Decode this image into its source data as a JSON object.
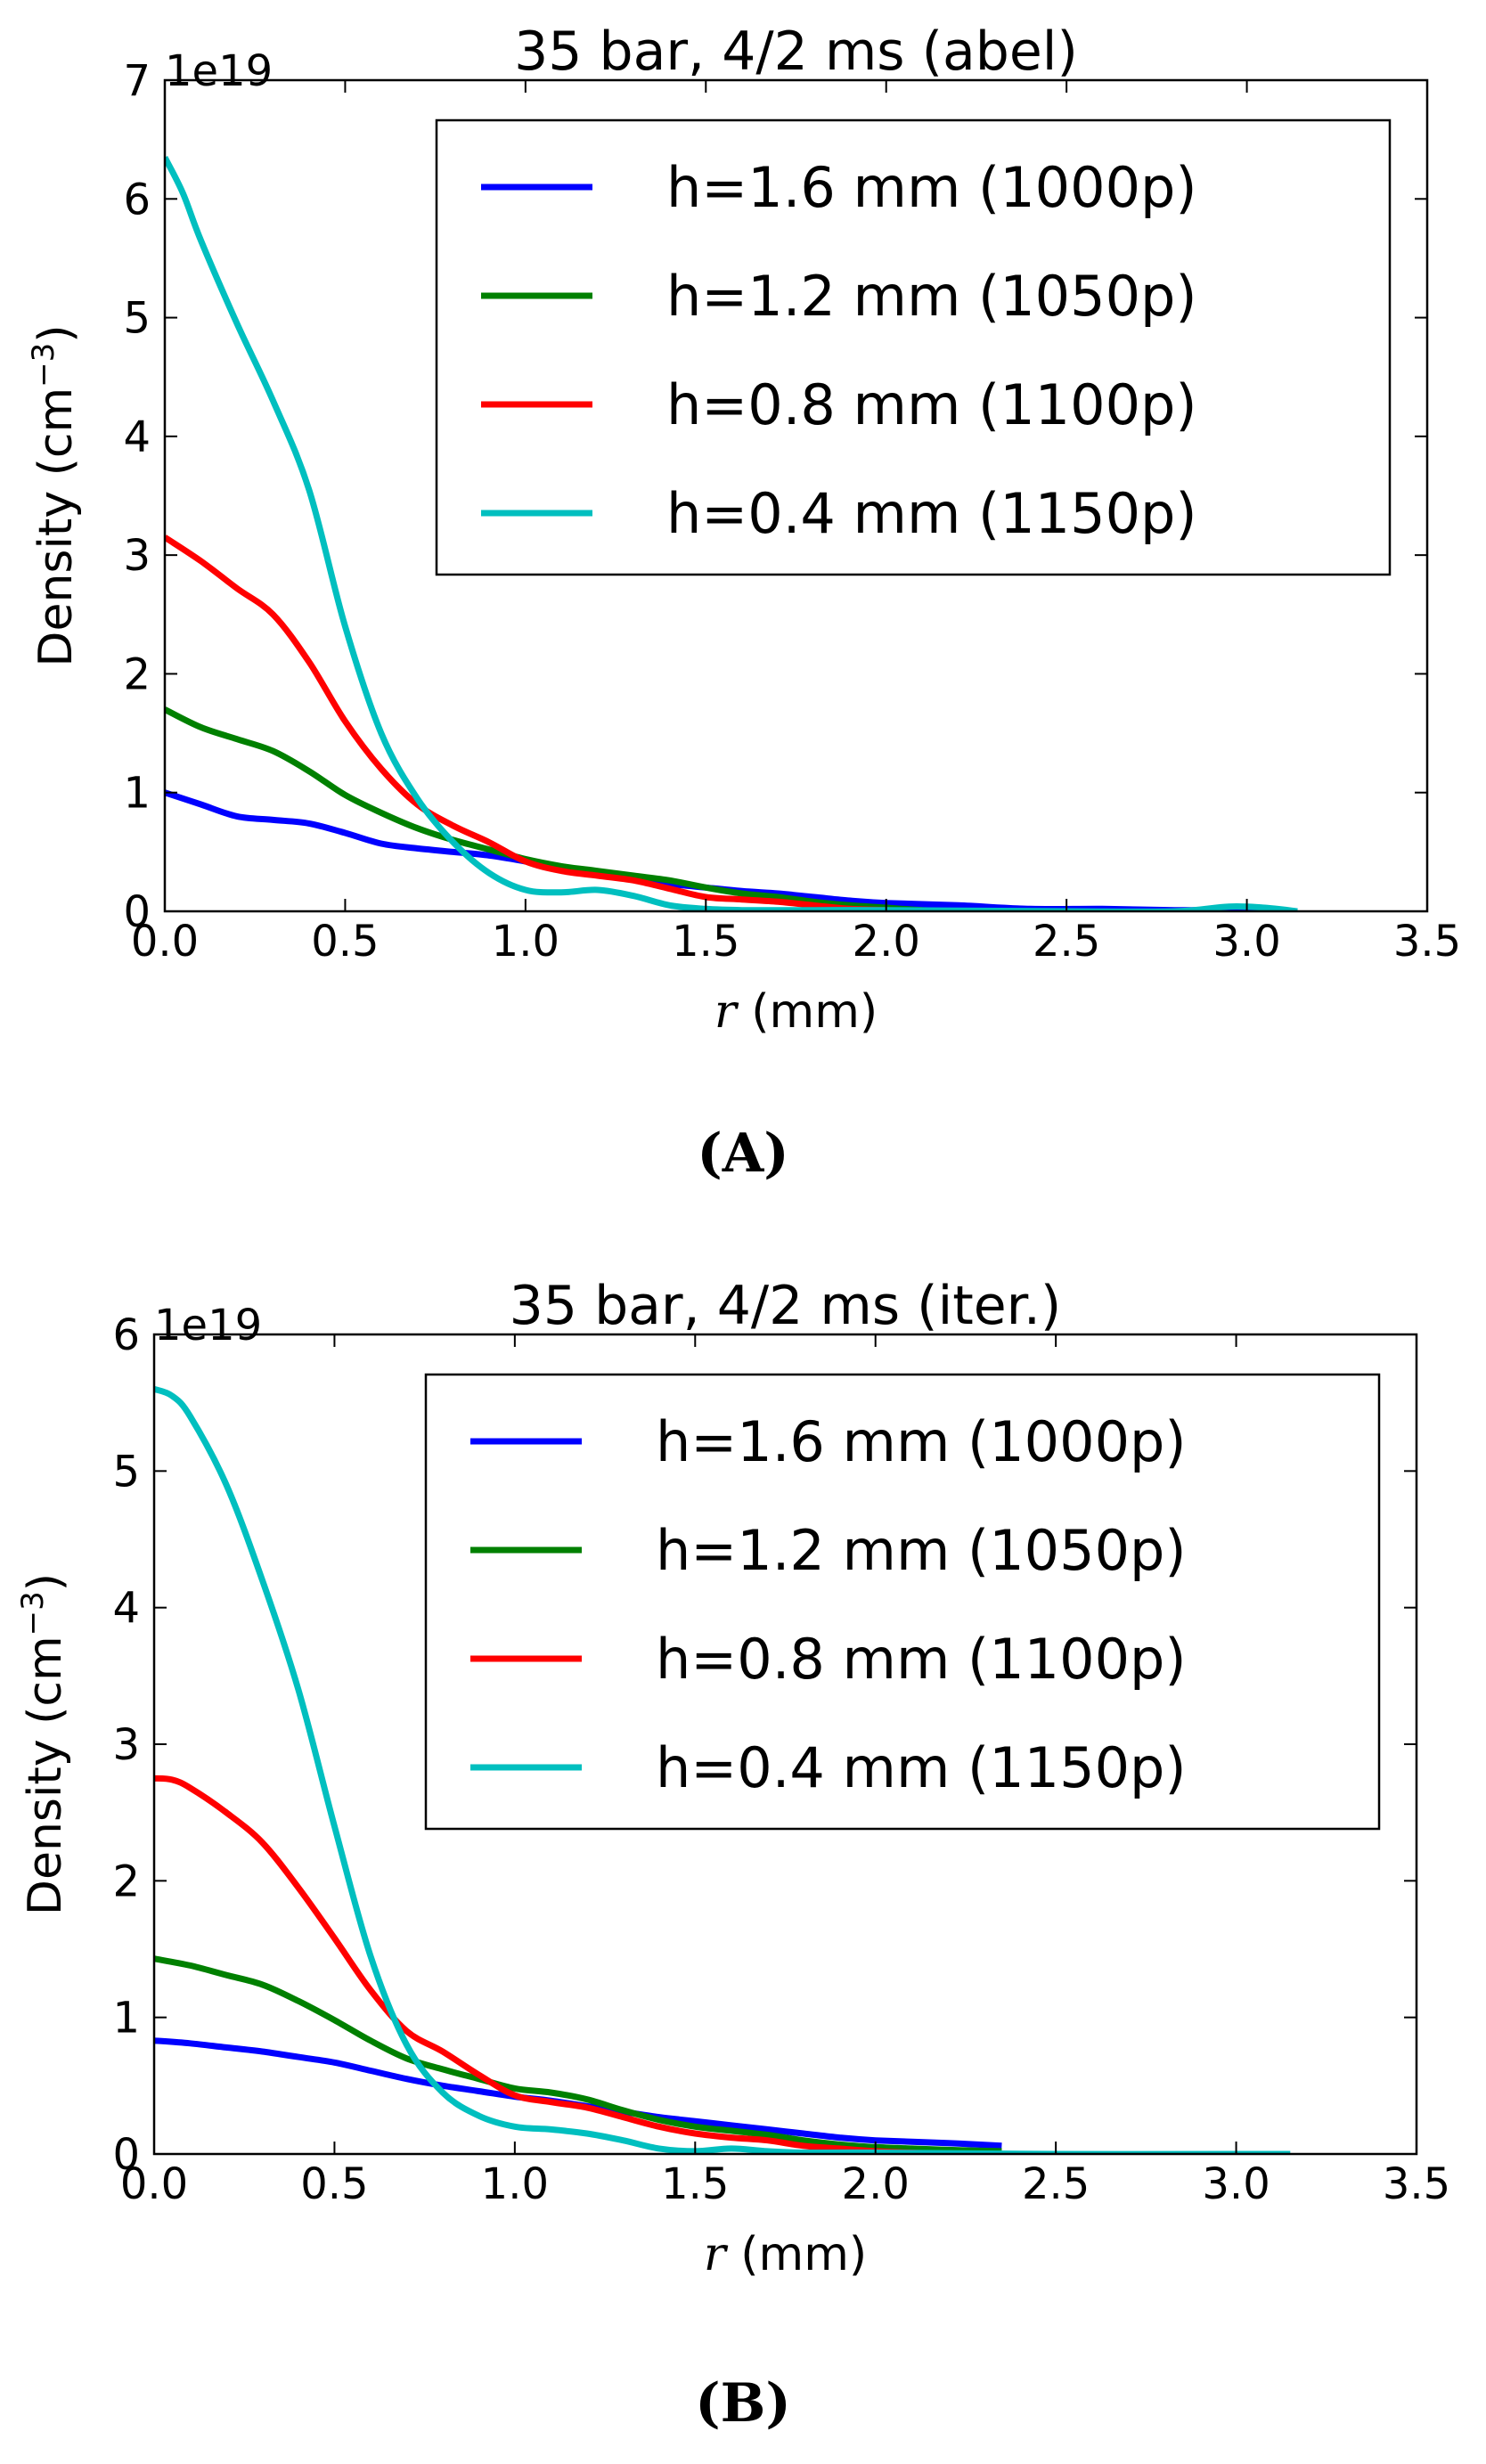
{
  "colors": {
    "blue": "#0000ff",
    "green": "#008000",
    "red": "#ff0000",
    "cyan": "#00bfbf",
    "axis": "#000000",
    "background": "#ffffff"
  },
  "chart_data": [
    {
      "type": "line",
      "panel_label": "(A)",
      "title": "35 bar, 4/2 ms (abel)",
      "xlabel_var": "r",
      "xlabel_unit": " (mm)",
      "ylabel": "Density (cm",
      "ylabel_exp": "−3",
      "ylabel_close": ")",
      "offset_text": "1e19",
      "xlim": [
        0,
        3.5
      ],
      "ylim": [
        0,
        7
      ],
      "xticks": [
        0.0,
        0.5,
        1.0,
        1.5,
        2.0,
        2.5,
        3.0,
        3.5
      ],
      "xtick_labels": [
        "0.0",
        "0.5",
        "1.0",
        "1.5",
        "2.0",
        "2.5",
        "3.0",
        "3.5"
      ],
      "yticks": [
        0,
        1,
        2,
        3,
        4,
        5,
        6,
        7
      ],
      "ytick_labels": [
        "0",
        "1",
        "2",
        "3",
        "4",
        "5",
        "6",
        "7"
      ],
      "legend_position": "upper-right",
      "series": [
        {
          "name": "h=1.6 mm (1000p)",
          "color_key": "blue",
          "x": [
            0,
            0.1,
            0.2,
            0.3,
            0.4,
            0.5,
            0.6,
            0.7,
            0.8,
            0.9,
            1.0,
            1.1,
            1.2,
            1.3,
            1.4,
            1.5,
            1.6,
            1.7,
            1.8,
            1.9,
            2.0,
            2.2,
            2.4,
            2.6,
            2.8,
            3.0,
            3.14
          ],
          "y": [
            1.0,
            0.9,
            0.8,
            0.77,
            0.74,
            0.66,
            0.57,
            0.53,
            0.5,
            0.47,
            0.42,
            0.36,
            0.31,
            0.27,
            0.23,
            0.2,
            0.17,
            0.15,
            0.12,
            0.09,
            0.07,
            0.05,
            0.02,
            0.02,
            0.01,
            0.01,
            0.0
          ]
        },
        {
          "name": "h=1.2 mm (1050p)",
          "color_key": "green",
          "x": [
            0,
            0.1,
            0.2,
            0.3,
            0.4,
            0.5,
            0.6,
            0.7,
            0.8,
            0.9,
            1.0,
            1.1,
            1.2,
            1.3,
            1.4,
            1.5,
            1.6,
            1.7,
            1.8,
            1.9,
            2.0,
            2.1,
            2.2
          ],
          "y": [
            1.7,
            1.55,
            1.45,
            1.35,
            1.18,
            0.98,
            0.83,
            0.7,
            0.6,
            0.52,
            0.44,
            0.38,
            0.34,
            0.3,
            0.26,
            0.2,
            0.15,
            0.12,
            0.08,
            0.05,
            0.03,
            0.01,
            0.0
          ]
        },
        {
          "name": "h=0.8 mm (1100p)",
          "color_key": "red",
          "x": [
            0,
            0.1,
            0.2,
            0.3,
            0.4,
            0.5,
            0.6,
            0.7,
            0.8,
            0.9,
            1.0,
            1.1,
            1.2,
            1.3,
            1.4,
            1.5,
            1.6,
            1.7,
            1.8,
            1.9,
            2.0,
            2.1
          ],
          "y": [
            3.15,
            2.95,
            2.72,
            2.5,
            2.1,
            1.6,
            1.2,
            0.9,
            0.72,
            0.58,
            0.42,
            0.34,
            0.3,
            0.26,
            0.19,
            0.12,
            0.1,
            0.08,
            0.05,
            0.02,
            0.01,
            0.0
          ]
        },
        {
          "name": "h=0.4 mm (1150p)",
          "color_key": "cyan",
          "x": [
            0,
            0.05,
            0.1,
            0.2,
            0.3,
            0.4,
            0.5,
            0.6,
            0.7,
            0.8,
            0.9,
            1.0,
            1.1,
            1.2,
            1.3,
            1.4,
            1.5,
            1.6,
            1.8,
            2.0,
            2.5,
            2.8,
            2.95,
            3.05,
            3.14
          ],
          "y": [
            6.35,
            6.05,
            5.65,
            4.95,
            4.3,
            3.55,
            2.4,
            1.5,
            0.95,
            0.58,
            0.32,
            0.18,
            0.16,
            0.18,
            0.13,
            0.05,
            0.02,
            0.01,
            0.01,
            0.01,
            0.0,
            0.0,
            0.04,
            0.03,
            0.0
          ]
        }
      ]
    },
    {
      "type": "line",
      "panel_label": "(B)",
      "title": "35 bar, 4/2 ms (iter.)",
      "xlabel_var": "r",
      "xlabel_unit": " (mm)",
      "ylabel": "Density (cm",
      "ylabel_exp": "−3",
      "ylabel_close": ")",
      "offset_text": "1e19",
      "xlim": [
        0,
        3.5
      ],
      "ylim": [
        0,
        6
      ],
      "xticks": [
        0.0,
        0.5,
        1.0,
        1.5,
        2.0,
        2.5,
        3.0,
        3.5
      ],
      "xtick_labels": [
        "0.0",
        "0.5",
        "1.0",
        "1.5",
        "2.0",
        "2.5",
        "3.0",
        "3.5"
      ],
      "yticks": [
        0,
        1,
        2,
        3,
        4,
        5,
        6
      ],
      "ytick_labels": [
        "0",
        "1",
        "2",
        "3",
        "4",
        "5",
        "6"
      ],
      "legend_position": "upper-right",
      "series": [
        {
          "name": "h=1.6 mm (1000p)",
          "color_key": "blue",
          "x": [
            0,
            0.1,
            0.2,
            0.3,
            0.4,
            0.5,
            0.6,
            0.7,
            0.8,
            0.9,
            1.0,
            1.1,
            1.2,
            1.3,
            1.4,
            1.5,
            1.6,
            1.7,
            1.8,
            1.9,
            2.0,
            2.2,
            2.35
          ],
          "y": [
            0.83,
            0.81,
            0.78,
            0.75,
            0.71,
            0.67,
            0.61,
            0.55,
            0.5,
            0.46,
            0.42,
            0.39,
            0.35,
            0.31,
            0.27,
            0.24,
            0.21,
            0.18,
            0.15,
            0.12,
            0.1,
            0.08,
            0.06
          ]
        },
        {
          "name": "h=1.2 mm (1050p)",
          "color_key": "green",
          "x": [
            0,
            0.1,
            0.2,
            0.3,
            0.4,
            0.5,
            0.6,
            0.7,
            0.8,
            0.9,
            1.0,
            1.1,
            1.2,
            1.3,
            1.4,
            1.5,
            1.6,
            1.7,
            1.8,
            1.9,
            2.0,
            2.1,
            2.2,
            2.35
          ],
          "y": [
            1.43,
            1.38,
            1.31,
            1.24,
            1.12,
            0.98,
            0.83,
            0.7,
            0.62,
            0.55,
            0.48,
            0.45,
            0.4,
            0.32,
            0.25,
            0.2,
            0.17,
            0.14,
            0.1,
            0.07,
            0.05,
            0.04,
            0.03,
            0.02
          ]
        },
        {
          "name": "h=0.8 mm (1100p)",
          "color_key": "red",
          "x": [
            0,
            0.05,
            0.1,
            0.2,
            0.3,
            0.4,
            0.5,
            0.6,
            0.7,
            0.8,
            0.9,
            1.0,
            1.1,
            1.2,
            1.3,
            1.4,
            1.5,
            1.6,
            1.7,
            1.8,
            1.9,
            2.0,
            2.2
          ],
          "y": [
            2.75,
            2.74,
            2.68,
            2.5,
            2.28,
            1.95,
            1.58,
            1.2,
            0.9,
            0.75,
            0.58,
            0.43,
            0.38,
            0.34,
            0.27,
            0.2,
            0.15,
            0.12,
            0.1,
            0.06,
            0.04,
            0.02,
            0.0
          ]
        },
        {
          "name": "h=0.4 mm (1150p)",
          "color_key": "cyan",
          "x": [
            0,
            0.05,
            0.1,
            0.2,
            0.3,
            0.4,
            0.5,
            0.6,
            0.7,
            0.8,
            0.9,
            1.0,
            1.1,
            1.2,
            1.3,
            1.4,
            1.5,
            1.6,
            1.7,
            1.8,
            2.0,
            2.5,
            3.0,
            3.15
          ],
          "y": [
            5.6,
            5.55,
            5.4,
            4.9,
            4.2,
            3.4,
            2.4,
            1.45,
            0.8,
            0.45,
            0.28,
            0.2,
            0.18,
            0.15,
            0.1,
            0.04,
            0.02,
            0.04,
            0.02,
            0.01,
            0.01,
            0.0,
            0.0,
            0.0
          ]
        }
      ]
    }
  ]
}
